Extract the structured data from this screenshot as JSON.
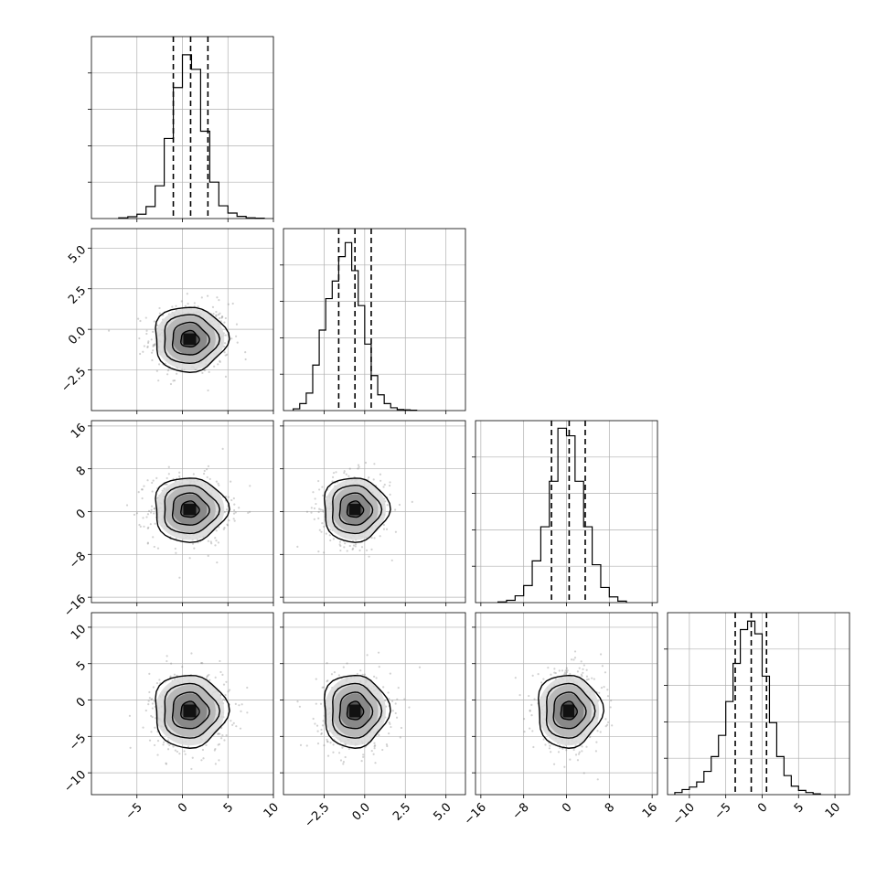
{
  "chart_data": {
    "type": "corner",
    "colors": {
      "line": "#000000",
      "grid": "#b0b0b0",
      "points": "#7f7f7f"
    },
    "params": [
      {
        "range": [
          -10,
          10
        ],
        "ticks": [
          -5,
          0,
          5,
          10
        ],
        "tick_labels": [
          "−5",
          "0",
          "5",
          "10"
        ]
      },
      {
        "range": [
          -5,
          6.2
        ],
        "ticks": [
          -2.5,
          0.0,
          2.5,
          5.0
        ],
        "tick_labels": [
          "−2.5",
          "0.0",
          "2.5",
          "5.0"
        ]
      },
      {
        "range": [
          -17,
          17
        ],
        "ticks": [
          -16,
          -8,
          0,
          8,
          16
        ],
        "tick_labels": [
          "−16",
          "−8",
          "0",
          "8",
          "16"
        ]
      },
      {
        "range": [
          -13,
          12
        ],
        "ticks": [
          -10,
          -5,
          0,
          5,
          10
        ],
        "tick_labels": [
          "−10",
          "−5",
          "0",
          "5",
          "10"
        ]
      }
    ],
    "histograms": [
      {
        "param": 0,
        "quantiles": [
          -1.0,
          0.9,
          2.8
        ],
        "bin_width": 1.0,
        "bin_starts": [
          -7,
          -6,
          -5,
          -4,
          -3,
          -2,
          -1,
          0,
          1,
          2,
          3,
          4,
          5,
          6,
          7,
          8
        ],
        "counts": [
          2,
          5,
          12,
          33,
          90,
          220,
          360,
          450,
          410,
          240,
          100,
          35,
          15,
          6,
          2,
          1
        ],
        "y_max": 500
      },
      {
        "param": 1,
        "quantiles": [
          -1.6,
          -0.6,
          0.4
        ],
        "bin_width": 0.4,
        "bin_starts": [
          -4.4,
          -4.0,
          -3.6,
          -3.2,
          -2.8,
          -2.4,
          -2.0,
          -1.6,
          -1.2,
          -0.8,
          -0.4,
          0.0,
          0.4,
          0.8,
          1.2,
          1.6,
          2.0,
          2.4,
          2.8
        ],
        "counts": [
          5,
          20,
          50,
          130,
          230,
          320,
          370,
          440,
          480,
          400,
          300,
          190,
          100,
          45,
          20,
          8,
          3,
          2,
          1
        ],
        "y_max": 520
      },
      {
        "param": 2,
        "quantiles": [
          -2.8,
          0.5,
          3.5
        ],
        "bin_width": 1.6,
        "bin_starts": [
          -12.8,
          -11.2,
          -9.6,
          -8.0,
          -6.4,
          -4.8,
          -3.2,
          -1.6,
          0.0,
          1.6,
          3.2,
          4.8,
          6.4,
          8.0,
          9.6
        ],
        "counts": [
          2,
          6,
          18,
          45,
          110,
          200,
          320,
          460,
          440,
          320,
          200,
          100,
          40,
          15,
          4
        ],
        "y_max": 480
      },
      {
        "param": 3,
        "quantiles": [
          -3.7,
          -1.5,
          0.6
        ],
        "bin_width": 1.0,
        "bin_starts": [
          -12,
          -11,
          -10,
          -9,
          -8,
          -7,
          -6,
          -5,
          -4,
          -3,
          -2,
          -1,
          0,
          1,
          2,
          3,
          4,
          5,
          6,
          7
        ],
        "counts": [
          5,
          12,
          18,
          30,
          55,
          90,
          140,
          220,
          310,
          390,
          410,
          380,
          280,
          170,
          90,
          45,
          20,
          10,
          5,
          2
        ],
        "y_max": 430
      }
    ],
    "pairs": [
      {
        "x_param": 0,
        "y_param": 1,
        "center": [
          0.8,
          -0.6
        ],
        "sigma": [
          2.0,
          1.0
        ],
        "levels": [
          0.5,
          1.0,
          1.5,
          2.0
        ]
      },
      {
        "x_param": 0,
        "y_param": 2,
        "center": [
          0.8,
          0.4
        ],
        "sigma": [
          2.0,
          3.0
        ],
        "levels": [
          0.5,
          1.0,
          1.5,
          2.0
        ]
      },
      {
        "x_param": 1,
        "y_param": 2,
        "center": [
          -0.6,
          0.4
        ],
        "sigma": [
          1.0,
          3.0
        ],
        "levels": [
          0.5,
          1.0,
          1.5,
          2.0
        ]
      },
      {
        "x_param": 0,
        "y_param": 3,
        "center": [
          0.8,
          -1.5
        ],
        "sigma": [
          2.0,
          2.5
        ],
        "levels": [
          0.5,
          1.0,
          1.5,
          2.0
        ]
      },
      {
        "x_param": 1,
        "y_param": 3,
        "center": [
          -0.6,
          -1.5
        ],
        "sigma": [
          1.0,
          2.5
        ],
        "levels": [
          0.5,
          1.0,
          1.5,
          2.0
        ]
      },
      {
        "x_param": 2,
        "y_param": 3,
        "center": [
          0.4,
          -1.5
        ],
        "sigma": [
          3.0,
          2.5
        ],
        "levels": [
          0.5,
          1.0,
          1.5,
          2.0
        ]
      }
    ],
    "grid": true,
    "scatter_points_per_panel": 500
  }
}
